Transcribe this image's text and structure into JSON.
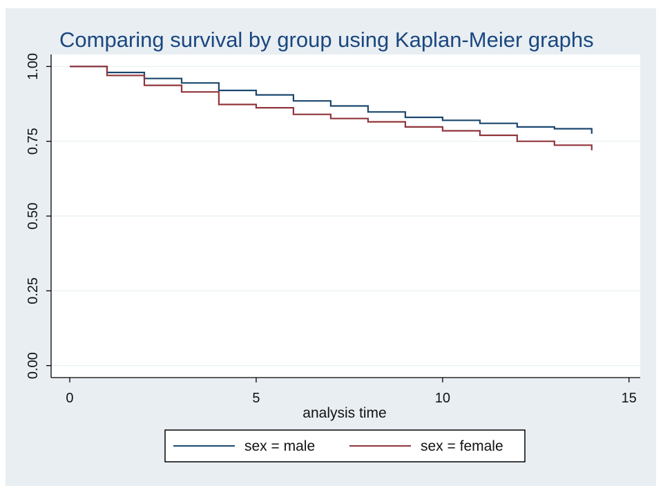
{
  "chart_data": {
    "type": "line",
    "title": "Comparing survival by group using Kaplan-Meier graphs",
    "xlabel": "analysis time",
    "ylabel": "",
    "xlim": [
      -0.5,
      15.3
    ],
    "ylim": [
      -0.04,
      1.04
    ],
    "xticks": [
      0,
      5,
      10,
      15
    ],
    "xtick_labels": [
      "0",
      "5",
      "10",
      "15"
    ],
    "yticks": [
      0,
      0.25,
      0.5,
      0.75,
      1
    ],
    "ytick_labels": [
      "0.00",
      "0.25",
      "0.50",
      "0.75",
      "1.00"
    ],
    "grid": "horizontal",
    "step": true,
    "legend_position": "bottom",
    "series": [
      {
        "name": "sex = male",
        "color": "#1a476f",
        "x": [
          0,
          1,
          2,
          3,
          4,
          5,
          6,
          7,
          8,
          9,
          10,
          11,
          12,
          13,
          14
        ],
        "y": [
          1.0,
          0.98,
          0.96,
          0.945,
          0.92,
          0.905,
          0.885,
          0.868,
          0.848,
          0.83,
          0.82,
          0.81,
          0.798,
          0.792,
          0.775
        ],
        "x_end": 14
      },
      {
        "name": "sex = female",
        "color": "#90353b",
        "x": [
          0,
          1,
          2,
          3,
          4,
          5,
          6,
          7,
          8,
          9,
          10,
          11,
          12,
          13,
          14
        ],
        "y": [
          1.0,
          0.97,
          0.937,
          0.915,
          0.873,
          0.862,
          0.84,
          0.826,
          0.815,
          0.798,
          0.785,
          0.77,
          0.75,
          0.737,
          0.72
        ],
        "x_end": 14
      }
    ]
  }
}
